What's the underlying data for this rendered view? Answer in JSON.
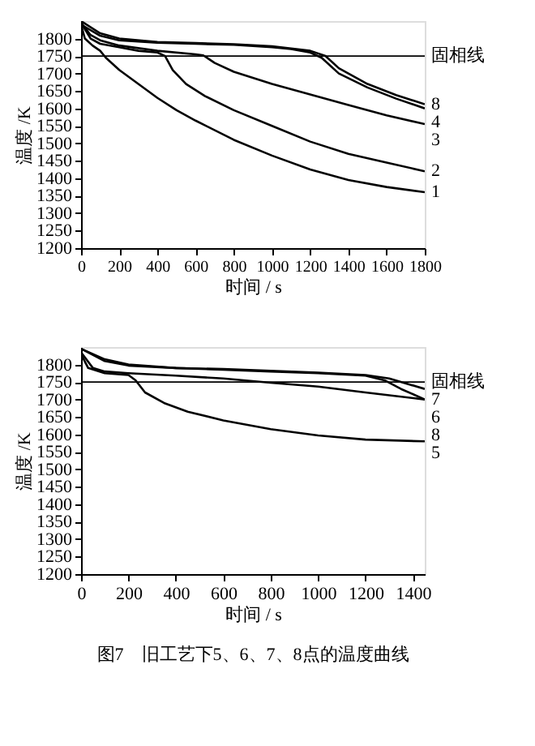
{
  "chart_data": [
    {
      "type": "line",
      "xlabel": "时间 / s",
      "ylabel": "温度 /K",
      "xlim": [
        0,
        1800
      ],
      "ylim": [
        1200,
        1850
      ],
      "xticks": [
        0,
        200,
        400,
        600,
        800,
        1000,
        1200,
        1400,
        1600,
        1800
      ],
      "yticks": [
        1200,
        1250,
        1300,
        1350,
        1400,
        1450,
        1500,
        1550,
        1600,
        1650,
        1700,
        1750,
        1800
      ],
      "ref_lines": [
        {
          "axis": "y",
          "value": 1750,
          "label": "固相线",
          "color": "#000000"
        }
      ],
      "series": [
        {
          "name": "1",
          "color": "#000000",
          "x": [
            0,
            20,
            60,
            100,
            130,
            200,
            300,
            400,
            500,
            600,
            800,
            1000,
            1200,
            1400,
            1600,
            1800
          ],
          "values": [
            1840,
            1800,
            1780,
            1765,
            1745,
            1710,
            1670,
            1630,
            1595,
            1565,
            1510,
            1465,
            1425,
            1395,
            1375,
            1360
          ]
        },
        {
          "name": "2",
          "color": "#000000",
          "x": [
            0,
            50,
            100,
            200,
            300,
            400,
            440,
            480,
            550,
            650,
            800,
            1000,
            1200,
            1400,
            1600,
            1800
          ],
          "values": [
            1845,
            1800,
            1785,
            1775,
            1765,
            1760,
            1750,
            1710,
            1670,
            1635,
            1595,
            1550,
            1505,
            1470,
            1445,
            1420
          ]
        },
        {
          "name": "3",
          "color": "#000000",
          "x": [
            0,
            50,
            100,
            200,
            400,
            600,
            640,
            700,
            800,
            1000,
            1200,
            1400,
            1600,
            1800
          ],
          "values": [
            1845,
            1810,
            1795,
            1780,
            1765,
            1755,
            1752,
            1730,
            1705,
            1670,
            1640,
            1610,
            1580,
            1555
          ]
        },
        {
          "name": "4",
          "color": "#000000",
          "x": [
            0,
            100,
            200,
            400,
            600,
            800,
            1000,
            1100,
            1200,
            1260,
            1350,
            1500,
            1650,
            1800
          ],
          "values": [
            1840,
            1808,
            1795,
            1788,
            1785,
            1782,
            1775,
            1770,
            1760,
            1745,
            1700,
            1660,
            1628,
            1600
          ]
        },
        {
          "name": "8",
          "color": "#000000",
          "x": [
            0,
            100,
            200,
            400,
            600,
            800,
            1000,
            1200,
            1280,
            1350,
            1500,
            1650,
            1800
          ],
          "values": [
            1850,
            1815,
            1800,
            1790,
            1787,
            1784,
            1778,
            1765,
            1750,
            1715,
            1670,
            1638,
            1612
          ]
        }
      ]
    },
    {
      "type": "line",
      "xlabel": "时间 / s",
      "ylabel": "温度 /K",
      "xlim": [
        0,
        1450
      ],
      "ylim": [
        1200,
        1850
      ],
      "xticks": [
        0,
        200,
        400,
        600,
        800,
        1000,
        1200,
        1400
      ],
      "yticks": [
        1200,
        1250,
        1300,
        1350,
        1400,
        1450,
        1500,
        1550,
        1600,
        1650,
        1700,
        1750,
        1800
      ],
      "ref_lines": [
        {
          "axis": "y",
          "value": 1750,
          "label": "固相线",
          "color": "#000000"
        }
      ],
      "annotations": [
        "图7　旧工艺下5、6、7、8点的温度曲线"
      ],
      "series": [
        {
          "name": "5",
          "color": "#000000",
          "x": [
            0,
            30,
            100,
            200,
            230,
            270,
            350,
            450,
            600,
            800,
            1000,
            1200,
            1450
          ],
          "values": [
            1830,
            1790,
            1775,
            1770,
            1755,
            1720,
            1690,
            1665,
            1640,
            1615,
            1597,
            1585,
            1580
          ]
        },
        {
          "name": "6",
          "color": "#000000",
          "x": [
            0,
            50,
            100,
            200,
            400,
            600,
            800,
            1000,
            1200,
            1450
          ],
          "values": [
            1835,
            1790,
            1780,
            1775,
            1768,
            1760,
            1748,
            1737,
            1720,
            1700
          ]
        },
        {
          "name": "7",
          "color": "#000000",
          "x": [
            0,
            100,
            200,
            400,
            600,
            800,
            1000,
            1200,
            1300,
            1450
          ],
          "values": [
            1845,
            1815,
            1800,
            1790,
            1787,
            1782,
            1777,
            1770,
            1760,
            1730
          ]
        },
        {
          "name": "8",
          "color": "#000000",
          "x": [
            0,
            100,
            200,
            400,
            600,
            800,
            1000,
            1200,
            1280,
            1350,
            1450
          ],
          "values": [
            1845,
            1810,
            1797,
            1790,
            1785,
            1780,
            1775,
            1768,
            1755,
            1730,
            1700
          ]
        }
      ]
    }
  ]
}
